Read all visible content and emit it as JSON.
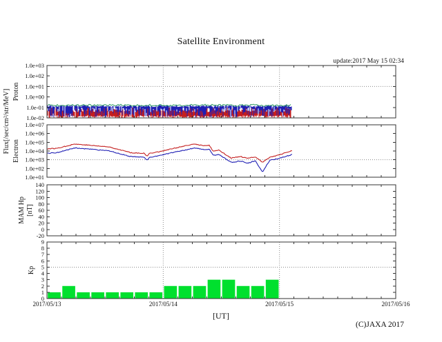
{
  "title": "Satellite Environment",
  "update_text": "update:2017 May 15 02:34",
  "footer": "(C)JAXA 2017",
  "xlabel": "[UT]",
  "colors": {
    "kp_bar": "#00e02e",
    "red": "#c41f1f",
    "blue": "#1f1fb4",
    "green": "#2f9e63",
    "frame": "#333333",
    "dotted_grid": "#888888"
  },
  "x_axis": {
    "tick_labels": [
      "2017/05/13",
      "2017/05/14",
      "2017/05/15",
      "2017/05/16"
    ],
    "span_hours": 72,
    "minor_tick_hours": 3
  },
  "chart_data": [
    {
      "type": "line",
      "name": "proton",
      "axis_label": "Proton",
      "shared_axis_label": "Flux[/sec/cm²/str/MeV]",
      "yscale": "log",
      "ylim_log10": [
        -2,
        3
      ],
      "ytick_labels": [
        "1.0e+03",
        "1.0e+02",
        "1.0e+01",
        "1.0e+00",
        "1.0e-01",
        "1.0e-02"
      ],
      "ygrid_dotted_log10": 1,
      "data_end_hour": 50.6,
      "noise_seed": 1234,
      "series": [
        {
          "name": "proton-red-noise",
          "color_key": "red",
          "style": "noise-band",
          "log10_top_range": [
            -1.0,
            -1.45
          ],
          "log10_bottom_range": [
            -2.0,
            -1.75
          ]
        },
        {
          "name": "proton-blue-noise",
          "color_key": "blue",
          "style": "noise-band",
          "log10_top_range": [
            -0.76,
            -0.96
          ],
          "log10_bottom_range": [
            -1.95,
            -1.0
          ]
        },
        {
          "name": "proton-green-line",
          "color_key": "green",
          "style": "jitter-line",
          "log10_mean": -0.8,
          "log10_jitter": 0.2
        }
      ]
    },
    {
      "type": "line",
      "name": "electron",
      "axis_label": "Electron",
      "yscale": "log",
      "ylim_log10": [
        1,
        7
      ],
      "ytick_labels": [
        "1.0e+07",
        "1.0e+06",
        "1.0e+05",
        "1.0e+04",
        "1.0e+03",
        "1.0e+02",
        "1.0e+01"
      ],
      "ygrid_dotted_log10": 3,
      "data_end_hour": 50.6,
      "noise_seed": 77,
      "series": [
        {
          "name": "electron-red",
          "color_key": "red",
          "style": "points-line",
          "points_hour_log10": [
            [
              0,
              4.25
            ],
            [
              2,
              4.3
            ],
            [
              5.7,
              4.8
            ],
            [
              8,
              4.7
            ],
            [
              13,
              4.45
            ],
            [
              17.4,
              3.8
            ],
            [
              20,
              3.75
            ],
            [
              20.7,
              3.4
            ],
            [
              21.2,
              3.75
            ],
            [
              23,
              3.9
            ],
            [
              27,
              4.4
            ],
            [
              30.5,
              4.8
            ],
            [
              32.4,
              4.6
            ],
            [
              33.5,
              4.65
            ],
            [
              34.3,
              4.0
            ],
            [
              35.5,
              4.1
            ],
            [
              38,
              3.2
            ],
            [
              40,
              3.35
            ],
            [
              41.5,
              3.15
            ],
            [
              43,
              3.35
            ],
            [
              44.5,
              2.7
            ],
            [
              46,
              3.3
            ],
            [
              48,
              3.55
            ],
            [
              50.6,
              4.05
            ]
          ]
        },
        {
          "name": "electron-blue",
          "color_key": "blue",
          "style": "points-line",
          "points_hour_log10": [
            [
              0,
              3.75
            ],
            [
              2,
              3.8
            ],
            [
              5.7,
              4.35
            ],
            [
              8,
              4.25
            ],
            [
              13,
              4.0
            ],
            [
              17.4,
              3.35
            ],
            [
              20,
              3.3
            ],
            [
              20.7,
              2.95
            ],
            [
              21.2,
              3.3
            ],
            [
              23,
              3.45
            ],
            [
              27,
              3.95
            ],
            [
              30.5,
              4.35
            ],
            [
              32.4,
              4.15
            ],
            [
              33.5,
              4.2
            ],
            [
              34.3,
              3.5
            ],
            [
              35.5,
              3.6
            ],
            [
              38,
              2.7
            ],
            [
              40,
              2.85
            ],
            [
              41.5,
              2.6
            ],
            [
              43,
              2.9
            ],
            [
              44.5,
              1.6
            ],
            [
              46,
              2.95
            ],
            [
              48,
              3.15
            ],
            [
              50.6,
              3.6
            ]
          ]
        }
      ]
    },
    {
      "type": "line",
      "name": "mam-hp",
      "axis_label_lines": [
        "MAM Hp",
        "[nT]"
      ],
      "yscale": "linear",
      "ylim": [
        -20,
        140
      ],
      "ytick_labels": [
        "140",
        "120",
        "100",
        "80",
        "60",
        "40",
        "20",
        "0",
        "-20"
      ],
      "series": []
    },
    {
      "type": "bar",
      "name": "kp",
      "axis_label": "Kp",
      "yscale": "linear",
      "ylim": [
        0,
        9
      ],
      "ytick_labels": [
        "9",
        "8",
        "7",
        "6",
        "5",
        "4",
        "3",
        "2",
        "1",
        "0"
      ],
      "ygrid_dotted": 5,
      "bar_interval_hours": 3,
      "values": [
        1,
        2,
        1,
        1,
        1,
        1,
        1,
        1,
        2,
        2,
        2,
        3,
        3,
        2,
        2,
        3
      ]
    }
  ]
}
